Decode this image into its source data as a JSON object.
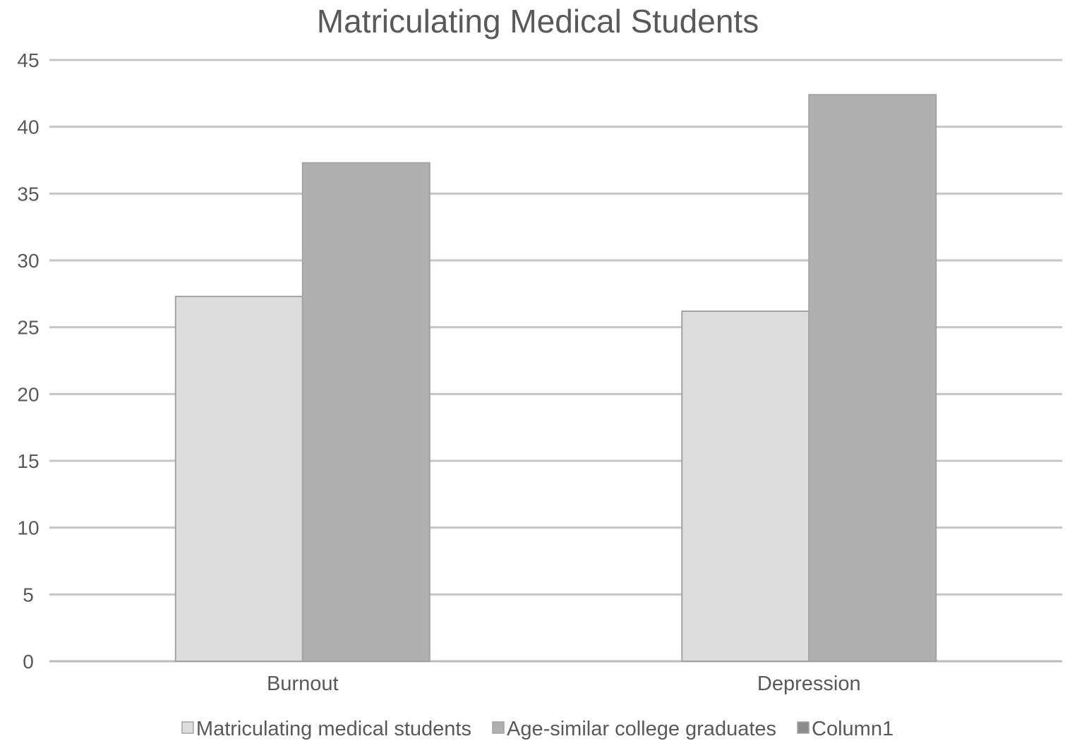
{
  "chart_data": {
    "type": "bar",
    "title": "Matriculating Medical Students",
    "xlabel": "",
    "ylabel": "",
    "categories": [
      "Burnout",
      "Depression"
    ],
    "series": [
      {
        "name": "Matriculating medical students",
        "values": [
          27.3,
          26.2
        ],
        "color": "#dddddd"
      },
      {
        "name": "Age-similar college graduates",
        "values": [
          37.3,
          42.4
        ],
        "color": "#b0b0b0"
      },
      {
        "name": "Column1",
        "values": [
          null,
          null
        ],
        "color": "#8c8c8c"
      }
    ],
    "ylim": [
      0,
      45
    ],
    "yticks": [
      0,
      5,
      10,
      15,
      20,
      25,
      30,
      35,
      40,
      45
    ],
    "grid": true,
    "legend_position": "bottom"
  }
}
